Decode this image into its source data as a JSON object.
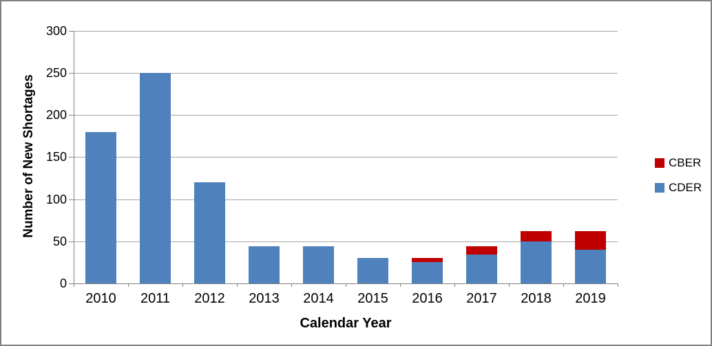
{
  "frame": {
    "background": "#ffffff",
    "border_color": "#7f7f7f"
  },
  "chart_data": {
    "type": "bar",
    "stacked": true,
    "title": "",
    "xlabel": "Calendar Year",
    "ylabel": "Number of New Shortages",
    "categories": [
      "2010",
      "2011",
      "2012",
      "2013",
      "2014",
      "2015",
      "2016",
      "2017",
      "2018",
      "2019"
    ],
    "series": [
      {
        "name": "CDER",
        "color": "#4f81bd",
        "values": [
          180,
          250,
          120,
          44,
          44,
          30,
          25,
          34,
          50,
          40
        ]
      },
      {
        "name": "CBER",
        "color": "#c00000",
        "values": [
          0,
          0,
          0,
          0,
          0,
          0,
          5,
          10,
          12,
          22
        ]
      }
    ],
    "ylim": [
      0,
      300
    ],
    "yticks": [
      0,
      50,
      100,
      150,
      200,
      250,
      300
    ],
    "grid": "horizontal",
    "gridline_color": "#a6a6a6",
    "axis_color": "#808080",
    "legend": {
      "position": "right",
      "items": [
        {
          "label": "CBER",
          "color": "#c00000"
        },
        {
          "label": "CDER",
          "color": "#4f81bd"
        }
      ]
    }
  }
}
